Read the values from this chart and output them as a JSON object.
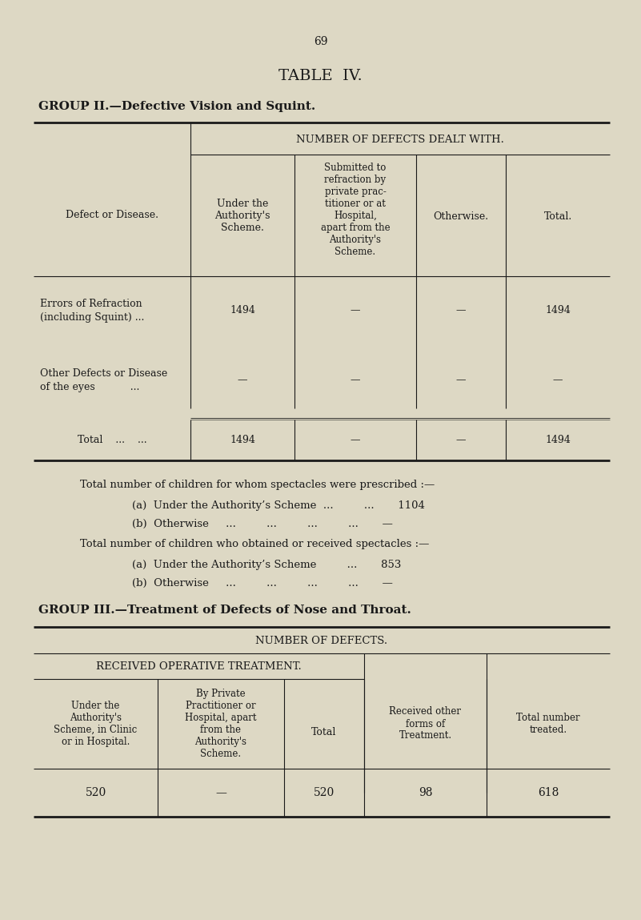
{
  "page_number": "69",
  "title": "TABLE  IV.",
  "bg_color": "#ddd8c4",
  "text_color": "#1a1a1a",
  "group2_heading": "GROUP II.—Defective Vision and Squint.",
  "group2_col_header_main": "NUMBER OF DEFECTS DEALT WITH.",
  "group3_heading": "GROUP III.—Treatment of Defects of Nose and Throat.",
  "group3_col_header_main": "NUMBER OF DEFECTS.",
  "group3_subheader": "RECEIVED OPERATIVE TREATMENT."
}
